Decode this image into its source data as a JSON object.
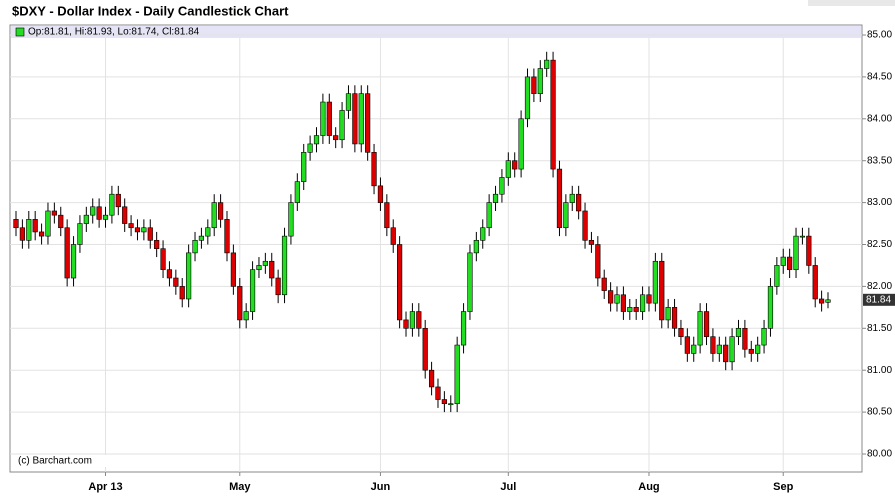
{
  "chart_data": {
    "type": "candlestick",
    "title": "$DXY - Dollar Index - Daily Candlestick Chart",
    "legend": "Op:81.81, Hi:81.93, Lo:81.74, Cl:81.84",
    "credit": "(c) Barchart.com",
    "up_color": "#22dd22",
    "down_color": "#dd0000",
    "grid": true,
    "ylim": [
      80.0,
      85.0
    ],
    "yticks": [
      {
        "value": 80.0,
        "label": "80.00"
      },
      {
        "value": 80.5,
        "label": "80.50"
      },
      {
        "value": 81.0,
        "label": "81.00"
      },
      {
        "value": 81.5,
        "label": "81.50"
      },
      {
        "value": 82.0,
        "label": "82.00"
      },
      {
        "value": 82.5,
        "label": "82.50"
      },
      {
        "value": 83.0,
        "label": "83.00"
      },
      {
        "value": 83.5,
        "label": "83.50"
      },
      {
        "value": 84.0,
        "label": "84.00"
      },
      {
        "value": 84.5,
        "label": "84.50"
      },
      {
        "value": 85.0,
        "label": "85.00"
      }
    ],
    "categories": [
      null,
      null,
      null,
      null,
      null,
      null,
      null,
      null,
      null,
      null,
      null,
      null,
      null,
      null,
      "Apr 13",
      null,
      null,
      null,
      null,
      null,
      null,
      null,
      null,
      null,
      null,
      null,
      null,
      null,
      null,
      null,
      null,
      null,
      null,
      null,
      null,
      "May",
      null,
      null,
      null,
      null,
      null,
      null,
      null,
      null,
      null,
      null,
      null,
      null,
      null,
      null,
      null,
      null,
      null,
      null,
      null,
      null,
      null,
      "Jun",
      null,
      null,
      null,
      null,
      null,
      null,
      null,
      null,
      null,
      null,
      null,
      null,
      null,
      null,
      null,
      null,
      null,
      null,
      null,
      "Jul",
      null,
      null,
      null,
      null,
      null,
      null,
      null,
      null,
      null,
      null,
      null,
      null,
      null,
      null,
      null,
      null,
      null,
      null,
      null,
      null,
      null,
      "Aug",
      null,
      null,
      null,
      null,
      null,
      null,
      null,
      null,
      null,
      null,
      null,
      null,
      null,
      null,
      null,
      null,
      null,
      null,
      null,
      null,
      "Sep",
      null,
      null,
      null,
      null,
      null,
      null,
      null
    ],
    "open": [
      82.8,
      82.7,
      82.55,
      82.8,
      82.65,
      82.6,
      82.9,
      82.85,
      82.7,
      82.1,
      82.5,
      82.75,
      82.85,
      82.95,
      82.8,
      82.85,
      83.1,
      82.95,
      82.75,
      82.7,
      82.65,
      82.7,
      82.55,
      82.45,
      82.2,
      82.1,
      82.0,
      81.85,
      82.4,
      82.55,
      82.6,
      82.7,
      83.0,
      82.8,
      82.4,
      82.0,
      81.6,
      81.7,
      82.2,
      82.25,
      82.3,
      82.1,
      81.9,
      82.6,
      83.0,
      83.25,
      83.6,
      83.7,
      83.8,
      84.2,
      83.8,
      83.75,
      84.1,
      84.3,
      83.7,
      84.3,
      83.6,
      83.2,
      83.0,
      82.7,
      82.5,
      81.6,
      81.5,
      81.7,
      81.5,
      81.0,
      80.8,
      80.65,
      80.6,
      80.6,
      81.3,
      81.7,
      82.4,
      82.55,
      82.7,
      83.0,
      83.1,
      83.3,
      83.5,
      83.4,
      84.0,
      84.5,
      84.3,
      84.6,
      84.7,
      83.4,
      82.7,
      83.0,
      83.1,
      82.9,
      82.55,
      82.5,
      82.1,
      81.95,
      81.8,
      81.9,
      81.7,
      81.75,
      81.7,
      81.9,
      81.8,
      82.3,
      81.6,
      81.75,
      81.5,
      81.4,
      81.2,
      81.3,
      81.7,
      81.4,
      81.2,
      81.3,
      81.1,
      81.4,
      81.5,
      81.25,
      81.2,
      81.3,
      81.5,
      82.0,
      82.25,
      82.35,
      82.2,
      82.6,
      82.6,
      82.25,
      81.85,
      81.81
    ],
    "high": [
      82.9,
      82.8,
      82.9,
      82.9,
      82.75,
      83.0,
      83.0,
      82.95,
      82.8,
      82.6,
      82.85,
      82.95,
      83.05,
      83.05,
      82.95,
      83.2,
      83.2,
      83.05,
      82.85,
      82.8,
      82.8,
      82.8,
      82.65,
      82.55,
      82.3,
      82.2,
      82.1,
      82.5,
      82.65,
      82.7,
      82.8,
      83.1,
      83.1,
      82.9,
      82.5,
      82.1,
      81.8,
      82.3,
      82.35,
      82.4,
      82.4,
      82.2,
      82.7,
      83.1,
      83.35,
      83.7,
      83.8,
      83.9,
      84.3,
      84.3,
      83.9,
      84.2,
      84.4,
      84.4,
      84.4,
      84.4,
      83.7,
      83.3,
      83.1,
      82.8,
      82.6,
      81.7,
      81.8,
      81.8,
      81.6,
      81.1,
      80.9,
      80.75,
      80.7,
      81.4,
      81.8,
      82.5,
      82.65,
      82.8,
      83.1,
      83.2,
      83.4,
      83.6,
      83.6,
      84.1,
      84.6,
      84.6,
      84.7,
      84.8,
      84.8,
      83.5,
      83.1,
      83.2,
      83.2,
      83.0,
      82.65,
      82.6,
      82.2,
      82.05,
      82.0,
      82.0,
      81.85,
      81.85,
      82.0,
      82.0,
      82.4,
      82.4,
      81.85,
      81.85,
      81.6,
      81.5,
      81.4,
      81.8,
      81.8,
      81.5,
      81.4,
      81.4,
      81.5,
      81.6,
      81.6,
      81.35,
      81.4,
      81.6,
      82.1,
      82.35,
      82.45,
      82.45,
      82.7,
      82.7,
      82.7,
      82.35,
      81.95,
      81.93
    ],
    "low": [
      82.6,
      82.45,
      82.45,
      82.55,
      82.5,
      82.5,
      82.75,
      82.6,
      82.0,
      82.0,
      82.4,
      82.65,
      82.75,
      82.7,
      82.7,
      82.75,
      82.85,
      82.65,
      82.6,
      82.55,
      82.55,
      82.45,
      82.35,
      82.1,
      82.0,
      81.9,
      81.75,
      81.75,
      82.3,
      82.45,
      82.5,
      82.6,
      82.7,
      82.3,
      81.9,
      81.5,
      81.5,
      81.6,
      82.1,
      82.15,
      82.0,
      81.8,
      81.8,
      82.5,
      82.9,
      83.15,
      83.5,
      83.6,
      83.7,
      83.7,
      83.65,
      83.65,
      84.0,
      83.6,
      83.6,
      83.5,
      83.1,
      82.9,
      82.6,
      82.4,
      81.5,
      81.4,
      81.4,
      81.4,
      80.9,
      80.7,
      80.55,
      80.5,
      80.5,
      80.5,
      81.2,
      81.6,
      82.3,
      82.45,
      82.6,
      82.9,
      83.0,
      83.2,
      83.3,
      83.3,
      83.9,
      84.2,
      84.2,
      84.5,
      83.3,
      82.6,
      82.6,
      82.9,
      82.8,
      82.45,
      82.4,
      82.0,
      81.85,
      81.7,
      81.7,
      81.6,
      81.6,
      81.6,
      81.6,
      81.7,
      81.7,
      81.5,
      81.5,
      81.4,
      81.3,
      81.1,
      81.1,
      81.2,
      81.3,
      81.1,
      81.1,
      81.0,
      81.0,
      81.3,
      81.15,
      81.1,
      81.1,
      81.2,
      81.4,
      81.9,
      82.15,
      82.1,
      82.1,
      82.5,
      82.15,
      81.75,
      81.7,
      81.74
    ],
    "close": [
      82.7,
      82.55,
      82.8,
      82.65,
      82.6,
      82.9,
      82.85,
      82.7,
      82.1,
      82.5,
      82.75,
      82.85,
      82.95,
      82.8,
      82.85,
      83.1,
      82.95,
      82.75,
      82.7,
      82.65,
      82.7,
      82.55,
      82.45,
      82.2,
      82.1,
      82.0,
      81.85,
      82.4,
      82.55,
      82.6,
      82.7,
      83.0,
      82.8,
      82.4,
      82.0,
      81.6,
      81.7,
      82.2,
      82.25,
      82.3,
      82.1,
      81.9,
      82.6,
      83.0,
      83.25,
      83.6,
      83.7,
      83.8,
      84.2,
      83.8,
      83.75,
      84.1,
      84.3,
      83.7,
      84.3,
      83.6,
      83.2,
      83.0,
      82.7,
      82.5,
      81.6,
      81.5,
      81.7,
      81.5,
      81.0,
      80.8,
      80.65,
      80.6,
      80.6,
      81.3,
      81.7,
      82.4,
      82.55,
      82.7,
      83.0,
      83.1,
      83.3,
      83.5,
      83.4,
      84.0,
      84.5,
      84.3,
      84.6,
      84.7,
      83.4,
      82.7,
      83.0,
      83.1,
      82.9,
      82.55,
      82.5,
      82.1,
      81.95,
      81.8,
      81.9,
      81.7,
      81.75,
      81.7,
      81.9,
      81.8,
      82.3,
      81.6,
      81.75,
      81.5,
      81.4,
      81.2,
      81.3,
      81.7,
      81.4,
      81.2,
      81.3,
      81.1,
      81.4,
      81.5,
      81.25,
      81.2,
      81.3,
      81.5,
      82.0,
      82.25,
      82.35,
      82.2,
      82.6,
      82.6,
      82.25,
      81.85,
      81.8,
      81.84
    ]
  }
}
